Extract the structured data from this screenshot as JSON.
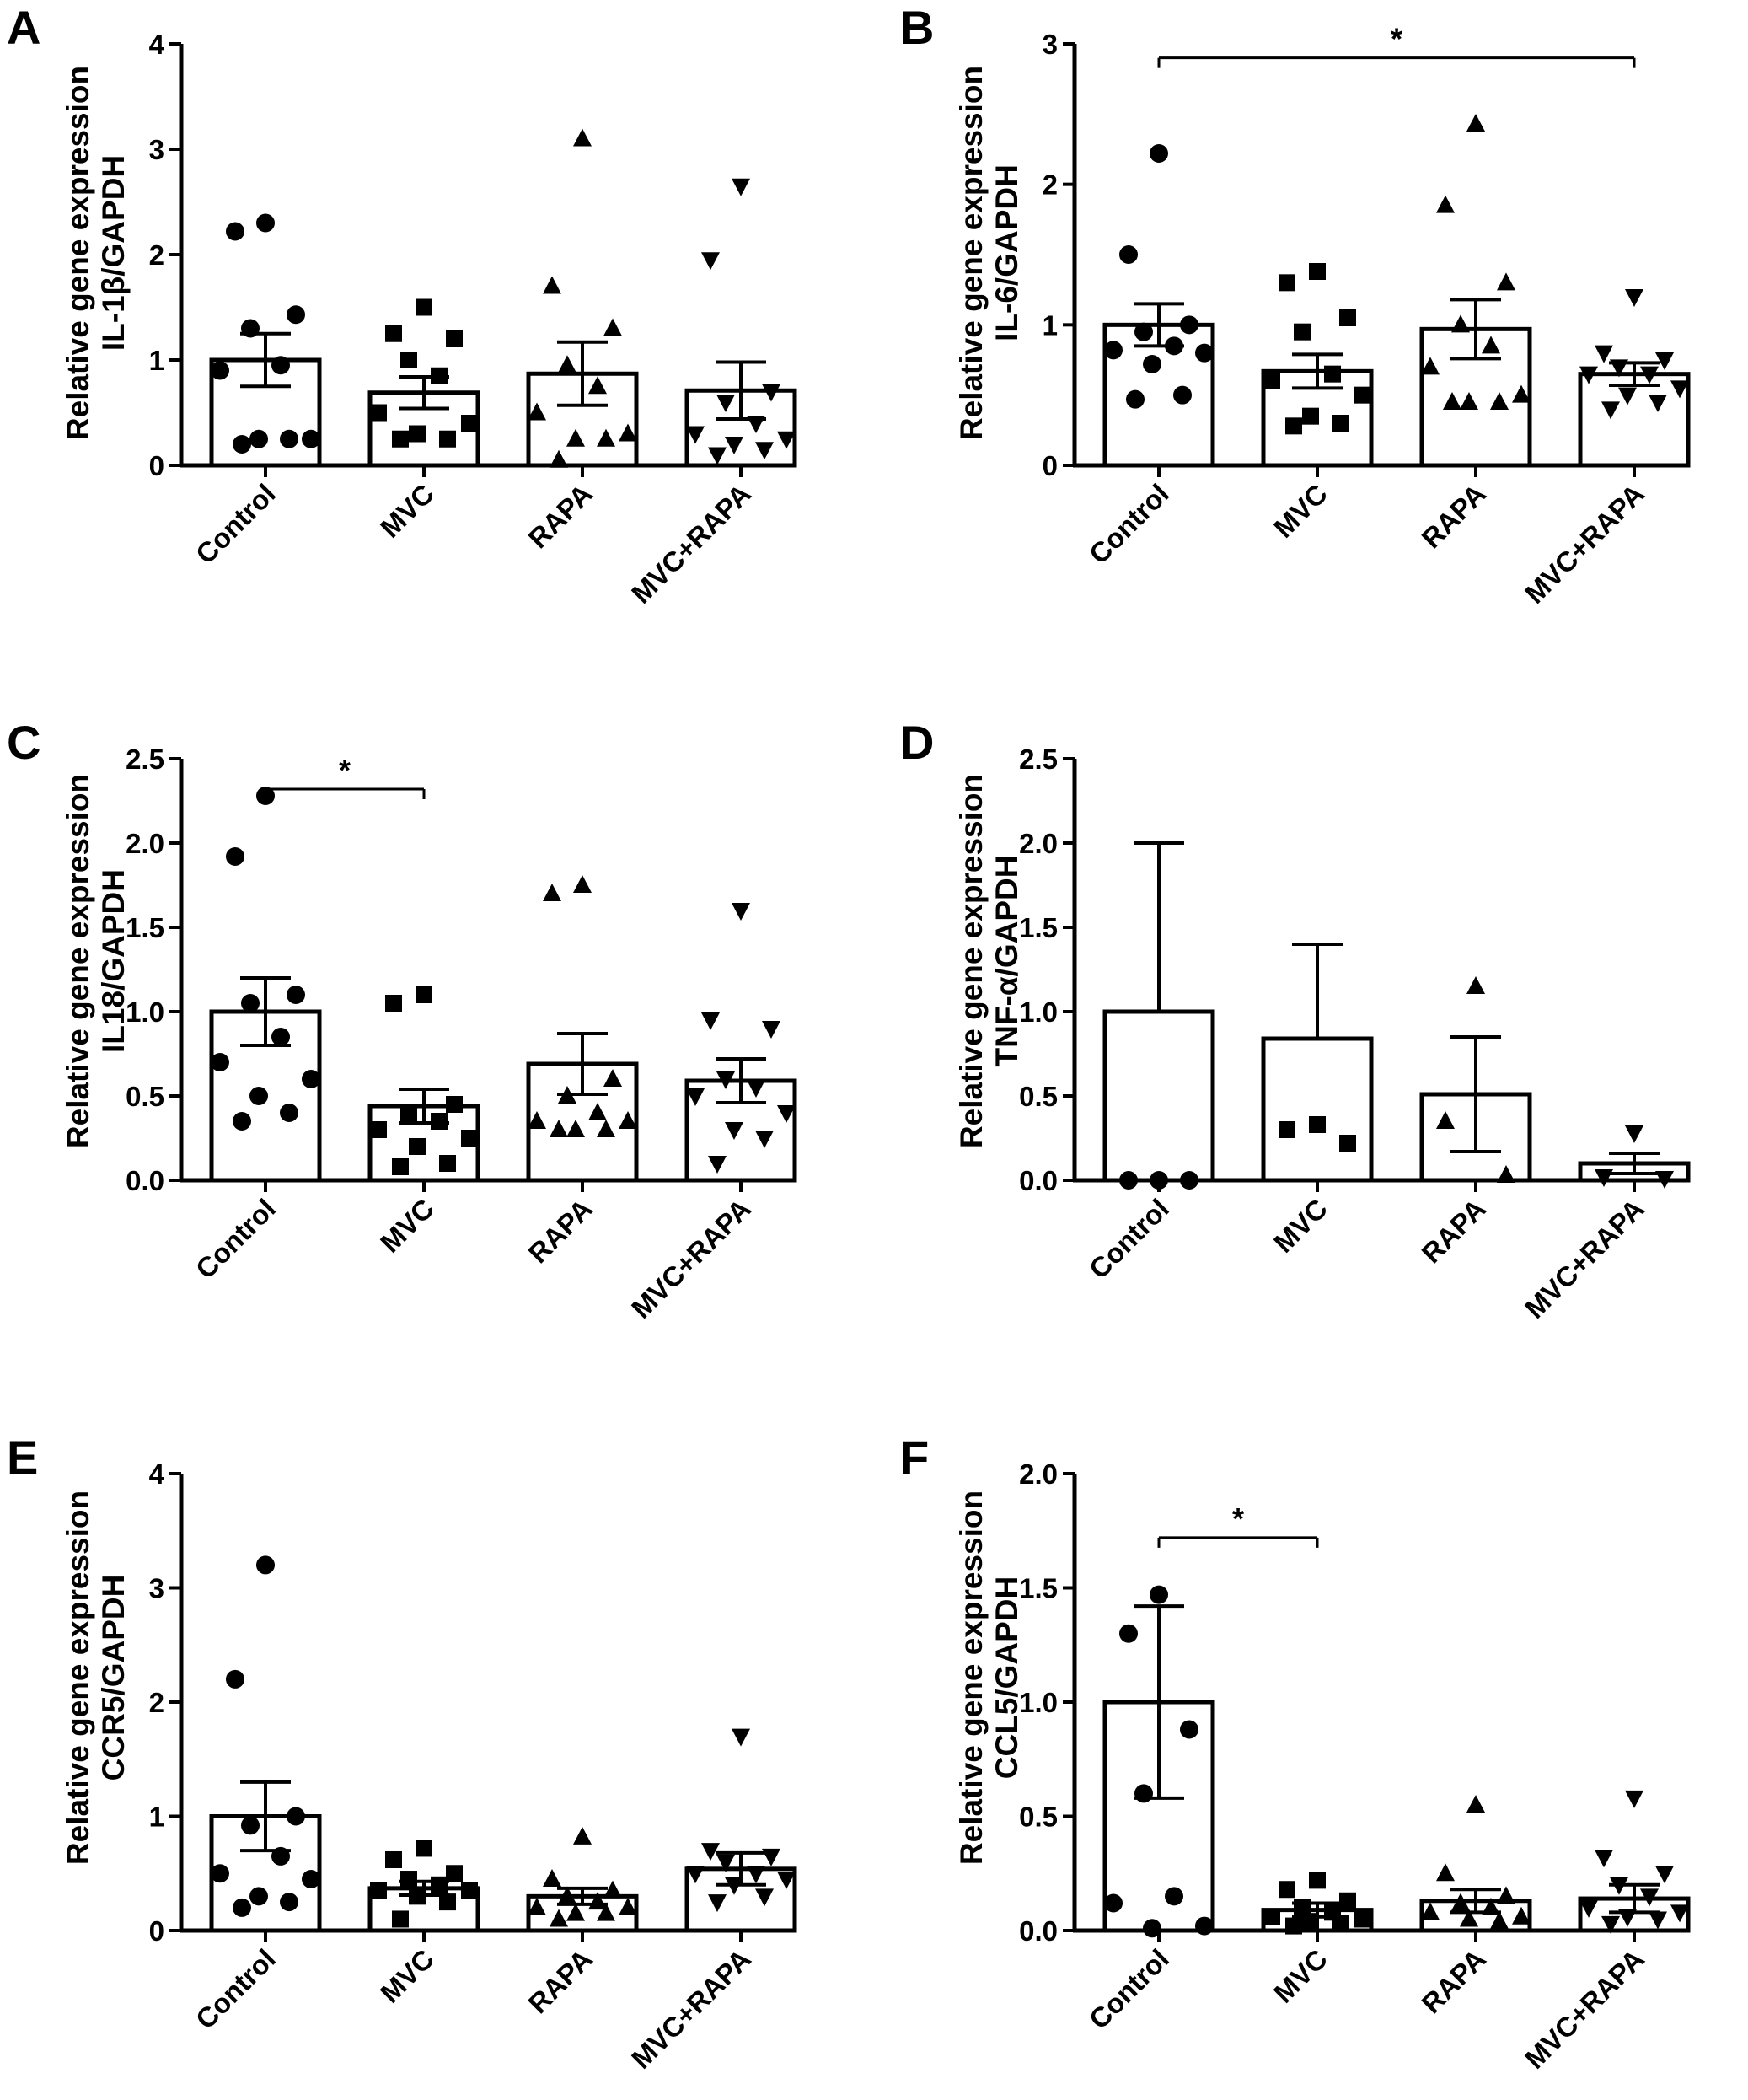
{
  "figure": {
    "categories": [
      "Control",
      "MVC",
      "RAPA",
      "MVC+RAPA"
    ],
    "marker_shapes": [
      "circle",
      "square",
      "triangle-up",
      "triangle-down"
    ],
    "bar_fill": "#ffffff",
    "ink": "#000000"
  },
  "chart_data": [
    {
      "panel": "A",
      "type": "bar",
      "ylabel_line1": "Relative gene expression",
      "ylabel_line2": "IL-1β/GAPDH",
      "ylim": [
        0,
        4
      ],
      "yticks": [
        "0",
        "1",
        "2",
        "3",
        "4"
      ],
      "ytick_values": [
        0,
        1,
        2,
        3,
        4
      ],
      "categories": [
        "Control",
        "MVC",
        "RAPA",
        "MVC+RAPA"
      ],
      "values": [
        1.0,
        0.69,
        0.87,
        0.71
      ],
      "sem": [
        0.25,
        0.15,
        0.3,
        0.27
      ],
      "points": [
        [
          2.3,
          2.22,
          1.43,
          1.3,
          0.95,
          0.9,
          0.25,
          0.25,
          0.25,
          0.2
        ],
        [
          1.5,
          1.25,
          1.2,
          1.0,
          0.85,
          0.5,
          0.4,
          0.3,
          0.25,
          0.25
        ],
        [
          3.1,
          1.7,
          1.3,
          0.95,
          0.75,
          0.5,
          0.3,
          0.25,
          0.25,
          0.05
        ],
        [
          2.65,
          1.95,
          0.7,
          0.6,
          0.4,
          0.3,
          0.25,
          0.2,
          0.15,
          0.1
        ]
      ],
      "significance": []
    },
    {
      "panel": "B",
      "type": "bar",
      "ylabel_line1": "Relative gene expression",
      "ylabel_line2": "IL-6/GAPDH",
      "ylim": [
        0,
        3
      ],
      "yticks": [
        "0",
        "1",
        "2",
        "3"
      ],
      "ytick_values": [
        0,
        1,
        2,
        3
      ],
      "categories": [
        "Control",
        "MVC",
        "RAPA",
        "MVC+RAPA"
      ],
      "values": [
        1.0,
        0.67,
        0.97,
        0.65
      ],
      "sem": [
        0.15,
        0.12,
        0.21,
        0.08
      ],
      "points": [
        [
          2.22,
          1.5,
          1.0,
          0.95,
          0.85,
          0.82,
          0.8,
          0.72,
          0.5,
          0.47
        ],
        [
          1.38,
          1.3,
          1.05,
          0.95,
          0.65,
          0.6,
          0.5,
          0.35,
          0.3,
          0.28
        ],
        [
          2.43,
          1.85,
          1.3,
          1.0,
          0.85,
          0.7,
          0.5,
          0.45,
          0.45,
          0.45
        ],
        [
          1.2,
          0.8,
          0.75,
          0.7,
          0.65,
          0.65,
          0.55,
          0.5,
          0.45,
          0.4
        ]
      ],
      "significance": [
        {
          "from": 0,
          "to": 3,
          "y": 2.9,
          "label": "*"
        }
      ]
    },
    {
      "panel": "C",
      "type": "bar",
      "ylabel_line1": "Relative gene expression",
      "ylabel_line2": "IL18/GAPDH",
      "ylim": [
        0,
        2.5
      ],
      "yticks": [
        "0.0",
        "0.5",
        "1.0",
        "1.5",
        "2.0",
        "2.5"
      ],
      "ytick_values": [
        0,
        0.5,
        1.0,
        1.5,
        2.0,
        2.5
      ],
      "categories": [
        "Control",
        "MVC",
        "RAPA",
        "MVC+RAPA"
      ],
      "values": [
        1.0,
        0.44,
        0.69,
        0.59
      ],
      "sem": [
        0.2,
        0.1,
        0.18,
        0.13
      ],
      "points": [
        [
          2.28,
          1.92,
          1.1,
          1.05,
          0.85,
          0.7,
          0.6,
          0.5,
          0.4,
          0.35
        ],
        [
          1.1,
          1.05,
          0.45,
          0.4,
          0.35,
          0.3,
          0.25,
          0.2,
          0.1,
          0.08
        ],
        [
          1.75,
          1.7,
          0.6,
          0.5,
          0.4,
          0.35,
          0.35,
          0.3,
          0.3,
          0.3
        ],
        [
          1.6,
          0.95,
          0.9,
          0.6,
          0.55,
          0.5,
          0.4,
          0.3,
          0.25,
          0.1
        ]
      ],
      "significance": [
        {
          "from": 0,
          "to": 1,
          "y": 2.32,
          "label": "*"
        }
      ]
    },
    {
      "panel": "D",
      "type": "bar",
      "ylabel_line1": "Relative gene expression",
      "ylabel_line2": "TNF-α/GAPDH",
      "ylim": [
        0,
        2.5
      ],
      "yticks": [
        "0.0",
        "0.5",
        "1.0",
        "1.5",
        "2.0",
        "2.5"
      ],
      "ytick_values": [
        0,
        0.5,
        1.0,
        1.5,
        2.0,
        2.5
      ],
      "categories": [
        "Control",
        "MVC",
        "RAPA",
        "MVC+RAPA"
      ],
      "values": [
        1.0,
        0.84,
        0.51,
        0.1
      ],
      "sem": [
        1.0,
        0.56,
        0.34,
        0.06
      ],
      "error_low": [
        1.0,
        0.84,
        0.17,
        0.04
      ],
      "points": [
        [
          0.0,
          0.0,
          0.0
        ],
        [
          0.33,
          0.3,
          0.22
        ],
        [
          1.15,
          0.35,
          0.03
        ],
        [
          0.28,
          0.02,
          0.01
        ]
      ],
      "significance": []
    },
    {
      "panel": "E",
      "type": "bar",
      "ylabel_line1": "Relative gene expression",
      "ylabel_line2": "CCR5/GAPDH",
      "ylim": [
        0,
        4
      ],
      "yticks": [
        "0",
        "1",
        "2",
        "3",
        "4"
      ],
      "ytick_values": [
        0,
        1,
        2,
        3,
        4
      ],
      "categories": [
        "Control",
        "MVC",
        "RAPA",
        "MVC+RAPA"
      ],
      "values": [
        1.0,
        0.37,
        0.3,
        0.54
      ],
      "sem": [
        0.3,
        0.06,
        0.07,
        0.14
      ],
      "points": [
        [
          3.2,
          2.2,
          1.0,
          0.92,
          0.65,
          0.5,
          0.45,
          0.3,
          0.25,
          0.2
        ],
        [
          0.72,
          0.62,
          0.5,
          0.45,
          0.4,
          0.35,
          0.35,
          0.3,
          0.25,
          0.1
        ],
        [
          0.82,
          0.45,
          0.35,
          0.3,
          0.25,
          0.2,
          0.2,
          0.15,
          0.15,
          0.1
        ],
        [
          1.7,
          0.7,
          0.65,
          0.6,
          0.5,
          0.5,
          0.45,
          0.4,
          0.3,
          0.25
        ]
      ],
      "significance": []
    },
    {
      "panel": "F",
      "type": "bar",
      "ylabel_line1": "Relative gene expression",
      "ylabel_line2": "CCL5/GAPDH",
      "ylim": [
        0,
        2.0
      ],
      "yticks": [
        "0.0",
        "0.5",
        "1.0",
        "1.5",
        "2.0"
      ],
      "ytick_values": [
        0,
        0.5,
        1.0,
        1.5,
        2.0
      ],
      "categories": [
        "Control",
        "MVC",
        "RAPA",
        "MVC+RAPA"
      ],
      "values": [
        1.0,
        0.09,
        0.13,
        0.14
      ],
      "sem": [
        0.42,
        0.03,
        0.05,
        0.06
      ],
      "points": [
        [
          1.47,
          1.3,
          0.88,
          0.6,
          0.15,
          0.12,
          0.02,
          0.01
        ],
        [
          0.22,
          0.18,
          0.13,
          0.1,
          0.08,
          0.06,
          0.05,
          0.04,
          0.03,
          0.02
        ],
        [
          0.55,
          0.25,
          0.15,
          0.12,
          0.1,
          0.08,
          0.06,
          0.05,
          0.04
        ],
        [
          0.58,
          0.32,
          0.25,
          0.2,
          0.15,
          0.1,
          0.08,
          0.06,
          0.05,
          0.03
        ]
      ],
      "significance": [
        {
          "from": 0,
          "to": 1,
          "y": 1.72,
          "label": "*"
        }
      ]
    }
  ]
}
